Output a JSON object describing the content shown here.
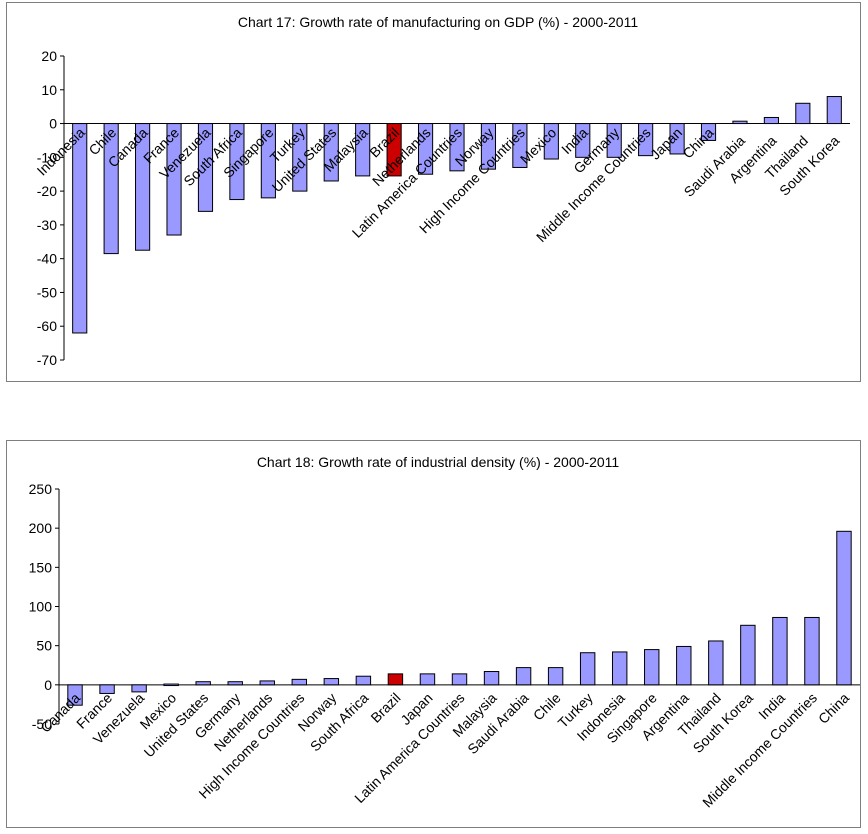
{
  "chart_data": [
    {
      "type": "bar",
      "title": "Chart 17: Growth rate of manufacturing on GDP (%) - 2000-2011",
      "xlabel": "",
      "ylabel": "",
      "ylim": [
        -70,
        20
      ],
      "yticks": [
        20,
        10,
        0,
        -10,
        -20,
        -30,
        -40,
        -50,
        -60,
        -70
      ],
      "grid": false,
      "legend": "none",
      "categories": [
        "Indonesia",
        "Chile",
        "Canada",
        "France",
        "Venezuela",
        "South Africa",
        "Singapore",
        "Turkey",
        "United States",
        "Malaysia",
        "Brazil",
        "Netherlands",
        "Latin America Countries",
        "Norway",
        "High Income Countries",
        "Mexico",
        "India",
        "Germany",
        "Middle Income Countries",
        "Japan",
        "China",
        "Saudi Arabia",
        "Argentina",
        "Thailand",
        "South Korea"
      ],
      "values": [
        -62,
        -38.5,
        -37.5,
        -33,
        -26,
        -22.5,
        -22,
        -20,
        -17,
        -15.5,
        -15.5,
        -15,
        -14,
        -13.5,
        -13,
        -10.5,
        -10,
        -10,
        -9.5,
        -9,
        -5,
        0.7,
        1.8,
        6,
        8
      ],
      "colors": {
        "default": "#9999ff",
        "highlight": "#cc0000",
        "highlight_category": "Brazil"
      }
    },
    {
      "type": "bar",
      "title": "Chart 18: Growth rate of industrial density (%) - 2000-2011",
      "xlabel": "",
      "ylabel": "",
      "ylim": [
        -50,
        250
      ],
      "yticks": [
        250,
        200,
        150,
        100,
        50,
        0,
        -50
      ],
      "grid": false,
      "legend": "none",
      "categories": [
        "Canada",
        "France",
        "Venezuela",
        "Mexico",
        "United States",
        "Germany",
        "Netherlands",
        "High Income Countries",
        "Norway",
        "South Africa",
        "Brazil",
        "Japan",
        "Latin America Countries",
        "Malaysia",
        "Saudi Arabia",
        "Chile",
        "Turkey",
        "Indonesia",
        "Singapore",
        "Argentina",
        "Thailand",
        "South Korea",
        "India",
        "Middle Income Countries",
        "China"
      ],
      "values": [
        -26,
        -11,
        -9,
        1,
        4,
        4,
        5,
        7,
        8,
        11,
        14,
        14,
        14,
        17,
        22,
        22,
        41,
        42,
        45,
        49,
        56,
        76,
        86,
        86,
        196
      ],
      "colors": {
        "default": "#9999ff",
        "highlight": "#cc0000",
        "highlight_category": "Brazil"
      }
    }
  ]
}
